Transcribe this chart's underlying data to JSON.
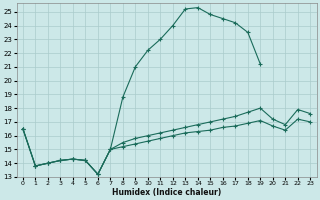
{
  "title": "",
  "xlabel": "Humidex (Indice chaleur)",
  "bg_color": "#cce8e8",
  "grid_color": "#aacccc",
  "line_color": "#1a6b5a",
  "xlim": [
    -0.5,
    23.5
  ],
  "ylim": [
    13,
    25.6
  ],
  "yticks": [
    13,
    14,
    15,
    16,
    17,
    18,
    19,
    20,
    21,
    22,
    23,
    24,
    25
  ],
  "xticks": [
    0,
    1,
    2,
    3,
    4,
    5,
    6,
    7,
    8,
    9,
    10,
    11,
    12,
    13,
    14,
    15,
    16,
    17,
    18,
    19,
    20,
    21,
    22,
    23
  ],
  "line1_x": [
    0,
    1,
    2,
    3,
    4,
    5,
    6,
    7,
    8,
    9,
    10,
    11,
    12,
    13,
    14,
    15,
    16,
    17,
    18,
    19
  ],
  "line1_y": [
    16.5,
    13.8,
    14.0,
    14.2,
    14.3,
    14.2,
    13.2,
    15.0,
    18.8,
    21.0,
    22.2,
    23.0,
    24.0,
    25.2,
    25.3,
    24.8,
    24.5,
    24.2,
    23.5,
    21.2
  ],
  "line2_x": [
    0,
    1,
    2,
    3,
    4,
    5,
    6,
    7,
    8,
    9,
    10,
    11,
    12,
    13,
    14,
    15,
    16,
    17,
    18,
    19,
    20,
    21,
    22,
    23
  ],
  "line2_y": [
    16.5,
    13.8,
    14.0,
    14.2,
    14.3,
    14.2,
    13.2,
    15.0,
    15.5,
    15.8,
    16.0,
    16.2,
    16.4,
    16.6,
    16.8,
    17.0,
    17.2,
    17.4,
    17.7,
    18.0,
    17.2,
    16.8,
    17.9,
    17.6
  ],
  "line3_x": [
    0,
    1,
    2,
    3,
    4,
    5,
    6,
    7,
    8,
    9,
    10,
    11,
    12,
    13,
    14,
    15,
    16,
    17,
    18,
    19,
    20,
    21,
    22,
    23
  ],
  "line3_y": [
    16.5,
    13.8,
    14.0,
    14.2,
    14.3,
    14.2,
    13.2,
    15.0,
    15.2,
    15.4,
    15.6,
    15.8,
    16.0,
    16.2,
    16.3,
    16.4,
    16.6,
    16.7,
    16.9,
    17.1,
    16.7,
    16.4,
    17.2,
    17.0
  ]
}
